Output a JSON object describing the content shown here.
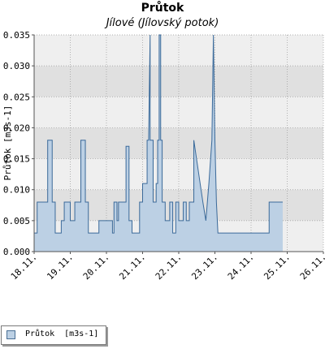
{
  "chart_data": {
    "type": "area",
    "title": "Průtok",
    "subtitle": "Jílové (Jílovský potok)",
    "ylabel": "Průtok [m3s-1]",
    "xlabel": "",
    "ylim": [
      0,
      0.035
    ],
    "xlim": [
      "2013-11-18 00:00",
      "2013-11-26 00:00"
    ],
    "x_ticks": [
      "18.11.",
      "19.11.",
      "20.11.",
      "21.11.",
      "22.11.",
      "23.11.",
      "24.11.",
      "25.11.",
      "26.11."
    ],
    "y_ticks": [
      "0.000",
      "0.005",
      "0.010",
      "0.015",
      "0.020",
      "0.025",
      "0.030",
      "0.035"
    ],
    "grid": true,
    "legend_position": "bottom-left",
    "colors": {
      "fill": "#bcd0e4",
      "line": "#3b6a9a",
      "band_dark": "#e0e0e0",
      "band_light": "#efefef"
    },
    "series": [
      {
        "name": "Průtok  [m3s-1]",
        "x": [
          "2013-11-18 00:00",
          "2013-11-18 02:00",
          "2013-11-18 02:00",
          "2013-11-18 09:00",
          "2013-11-18 09:00",
          "2013-11-18 12:00",
          "2013-11-18 12:00",
          "2013-11-18 14:00",
          "2013-11-18 14:00",
          "2013-11-18 18:00",
          "2013-11-18 18:00",
          "2013-11-18 20:00",
          "2013-11-18 20:00",
          "2013-11-19 00:00",
          "2013-11-19 00:00",
          "2013-11-19 03:00",
          "2013-11-19 03:00",
          "2013-11-19 07:00",
          "2013-11-19 07:00",
          "2013-11-19 10:00",
          "2013-11-19 10:00",
          "2013-11-19 12:00",
          "2013-11-19 12:00",
          "2013-11-19 16:00",
          "2013-11-19 16:00",
          "2013-11-19 19:00",
          "2013-11-19 19:00",
          "2013-11-20 04:00",
          "2013-11-20 04:00",
          "2013-11-20 05:00",
          "2013-11-20 05:00",
          "2013-11-20 07:00",
          "2013-11-20 07:00",
          "2013-11-20 08:00",
          "2013-11-20 08:00",
          "2013-11-20 13:00",
          "2013-11-20 13:00",
          "2013-11-20 15:00",
          "2013-11-20 15:00",
          "2013-11-20 17:00",
          "2013-11-20 17:00",
          "2013-11-20 22:00",
          "2013-11-20 22:00",
          "2013-11-21 00:00",
          "2013-11-21 00:00",
          "2013-11-21 03:00",
          "2013-11-21 03:00",
          "2013-11-21 04:00",
          "2013-11-21 05:00",
          "2013-11-21 05:00",
          "2013-11-21 07:00",
          "2013-11-21 07:00",
          "2013-11-21 09:00",
          "2013-11-21 09:00",
          "2013-11-21 10:00",
          "2013-11-21 10:00",
          "2013-11-21 11:00",
          "2013-11-21 11:00",
          "2013-11-21 12:00",
          "2013-11-21 12:00",
          "2013-11-21 13:00",
          "2013-11-21 13:00",
          "2013-11-21 15:00",
          "2013-11-21 15:00",
          "2013-11-21 18:00",
          "2013-11-21 18:00",
          "2013-11-21 20:00",
          "2013-11-21 20:00",
          "2013-11-21 22:00",
          "2013-11-21 22:00",
          "2013-11-22 00:00",
          "2013-11-22 00:00",
          "2013-11-22 03:00",
          "2013-11-22 03:00",
          "2013-11-22 05:00",
          "2013-11-22 05:00",
          "2013-11-22 07:00",
          "2013-11-22 07:00",
          "2013-11-22 10:00",
          "2013-11-22 10:00",
          "2013-11-22 16:00",
          "2013-11-22 16:00",
          "2013-11-22 18:00",
          "2013-11-22 18:00",
          "2013-11-22 20:00",
          "2013-11-22 20:00",
          "2013-11-22 22:00",
          "2013-11-22 22:00",
          "2013-11-22 23:00",
          "2013-11-23 00:00",
          "2013-11-23 00:00",
          "2013-11-23 01:00",
          "2013-11-23 01:00",
          "2013-11-23 02:00",
          "2013-11-23 02:00",
          "2013-11-23 03:00",
          "2013-11-23 03:00",
          "2013-11-23 04:00",
          "2013-11-23 04:00",
          "2013-11-24 12:00",
          "2013-11-24 12:00",
          "2013-11-24 21:00"
        ],
        "values": [
          0.003,
          0.003,
          0.008,
          0.008,
          0.018,
          0.018,
          0.008,
          0.008,
          0.003,
          0.003,
          0.005,
          0.005,
          0.008,
          0.008,
          0.005,
          0.005,
          0.008,
          0.008,
          0.018,
          0.018,
          0.008,
          0.008,
          0.003,
          0.003,
          0.003,
          0.003,
          0.005,
          0.005,
          0.003,
          0.003,
          0.008,
          0.008,
          0.005,
          0.005,
          0.008,
          0.008,
          0.017,
          0.017,
          0.005,
          0.005,
          0.003,
          0.003,
          0.008,
          0.008,
          0.011,
          0.011,
          0.018,
          0.018,
          0.035,
          0.018,
          0.018,
          0.008,
          0.008,
          0.011,
          0.011,
          0.018,
          0.018,
          0.035,
          0.035,
          0.018,
          0.018,
          0.008,
          0.008,
          0.005,
          0.005,
          0.008,
          0.008,
          0.003,
          0.003,
          0.008,
          0.008,
          0.005,
          0.005,
          0.008,
          0.008,
          0.005,
          0.005,
          0.008,
          0.008,
          0.018,
          0.008,
          0.008,
          0.005,
          0.005,
          0.011,
          0.011,
          0.018,
          0.018,
          0.035,
          0.018,
          0.018,
          0.008,
          0.008,
          0.003,
          0.003,
          0.003,
          0.003,
          0.003,
          0.003,
          0.003,
          0.008,
          0.008
        ]
      }
    ]
  },
  "legend": {
    "label": "Průtok  [m3s-1]"
  }
}
